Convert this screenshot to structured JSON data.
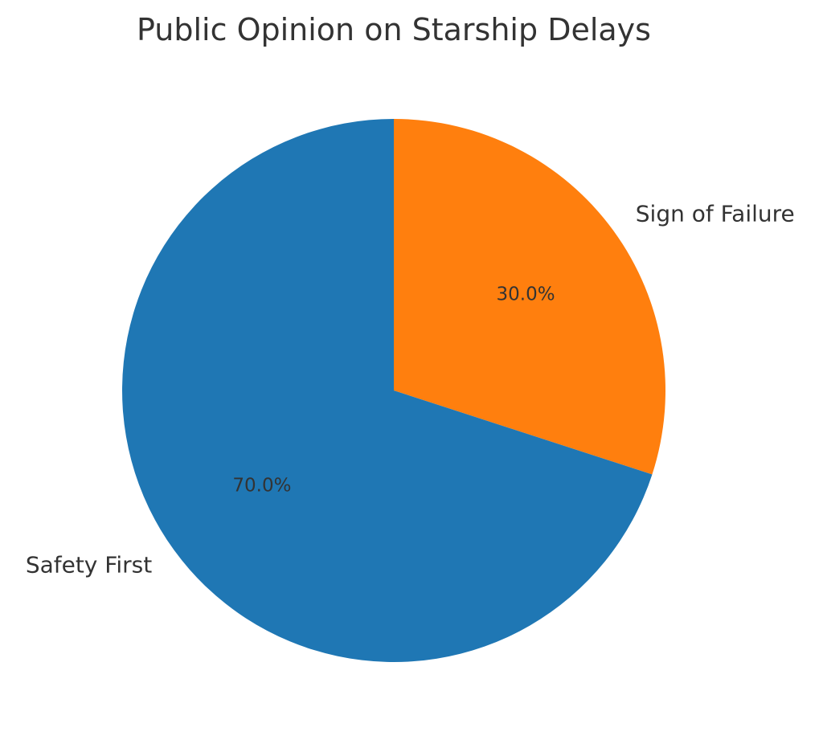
{
  "chart_data": {
    "type": "pie",
    "title": "Public Opinion on Starship Delays",
    "slices": [
      {
        "label": "Sign of Failure",
        "value": 30,
        "pct_label": "30.0%",
        "color": "#ff7f0e"
      },
      {
        "label": "Safety First",
        "value": 70,
        "pct_label": "70.0%",
        "color": "#1f77b4"
      }
    ],
    "start_angle_deg": 90,
    "direction": "clockwise"
  }
}
